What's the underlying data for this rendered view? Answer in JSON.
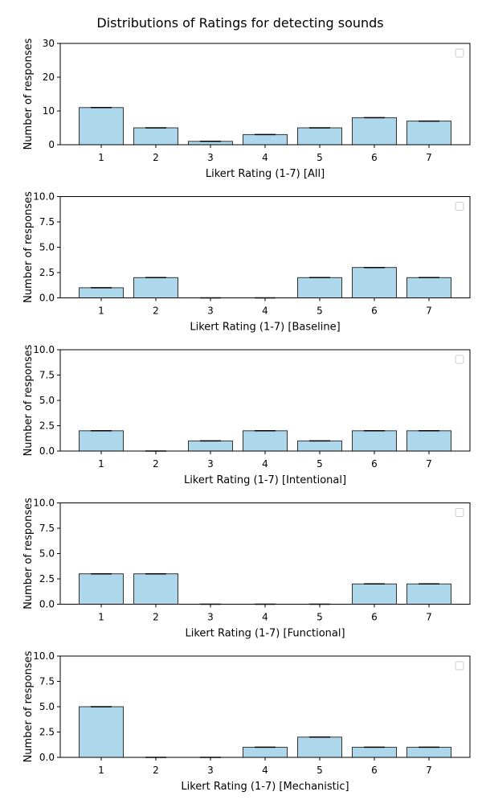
{
  "figure": {
    "title": "Distributions of Ratings for detecting sounds"
  },
  "colors": {
    "bar_fill": "#add8ec",
    "bar_edge": "#333333",
    "axis": "#000000",
    "legend_box": "#cccccc"
  },
  "chart_data": [
    {
      "type": "bar",
      "categories": [
        "1",
        "2",
        "3",
        "4",
        "5",
        "6",
        "7"
      ],
      "values": [
        11,
        5,
        1,
        3,
        5,
        8,
        7
      ],
      "xlabel": "Likert Rating (1-7) [All]",
      "ylabel": "Number of responses",
      "ylim": [
        0,
        30
      ],
      "yticks": [
        "0",
        "10",
        "20",
        "30"
      ],
      "legend": "top-right (empty)",
      "grid": false
    },
    {
      "type": "bar",
      "categories": [
        "1",
        "2",
        "3",
        "4",
        "5",
        "6",
        "7"
      ],
      "values": [
        1,
        2,
        0,
        0,
        2,
        3,
        2
      ],
      "xlabel": "Likert Rating (1-7) [Baseline]",
      "ylabel": "Number of responses",
      "ylim": [
        0,
        10
      ],
      "yticks": [
        "0.0",
        "2.5",
        "5.0",
        "7.5",
        "10.0"
      ],
      "legend": "top-right (empty)",
      "grid": false
    },
    {
      "type": "bar",
      "categories": [
        "1",
        "2",
        "3",
        "4",
        "5",
        "6",
        "7"
      ],
      "values": [
        2,
        0,
        1,
        2,
        1,
        2,
        2
      ],
      "xlabel": "Likert Rating (1-7) [Intentional]",
      "ylabel": "Number of responses",
      "ylim": [
        0,
        10
      ],
      "yticks": [
        "0.0",
        "2.5",
        "5.0",
        "7.5",
        "10.0"
      ],
      "legend": "top-right (empty)",
      "grid": false
    },
    {
      "type": "bar",
      "categories": [
        "1",
        "2",
        "3",
        "4",
        "5",
        "6",
        "7"
      ],
      "values": [
        3,
        3,
        0,
        0,
        0,
        2,
        2
      ],
      "xlabel": "Likert Rating (1-7) [Functional]",
      "ylabel": "Number of responses",
      "ylim": [
        0,
        10
      ],
      "yticks": [
        "0.0",
        "2.5",
        "5.0",
        "7.5",
        "10.0"
      ],
      "legend": "top-right (empty)",
      "grid": false
    },
    {
      "type": "bar",
      "categories": [
        "1",
        "2",
        "3",
        "4",
        "5",
        "6",
        "7"
      ],
      "values": [
        5,
        0,
        0,
        1,
        2,
        1,
        1
      ],
      "xlabel": "Likert Rating (1-7) [Mechanistic]",
      "ylabel": "Number of responses",
      "ylim": [
        0,
        10
      ],
      "yticks": [
        "0.0",
        "2.5",
        "5.0",
        "7.5",
        "10.0"
      ],
      "legend": "top-right (empty)",
      "grid": false
    }
  ]
}
